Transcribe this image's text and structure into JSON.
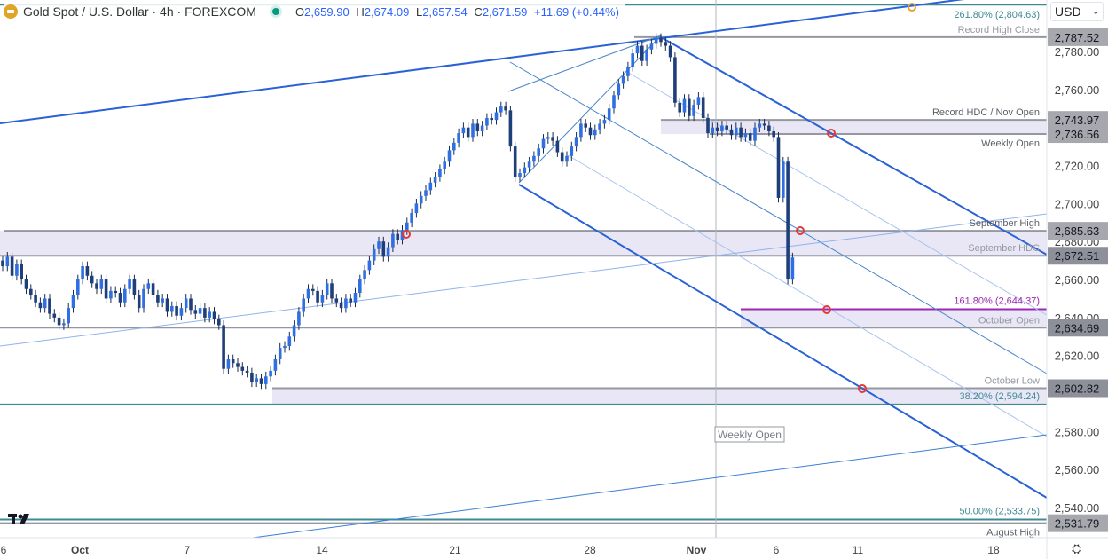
{
  "header": {
    "symbol": "Gold Spot / U.S. Dollar · 4h · FOREXCOM",
    "open_label": "O",
    "open": "2,659.90",
    "high_label": "H",
    "high": "2,674.09",
    "low_label": "L",
    "low": "2,657.54",
    "close_label": "C",
    "close": "2,671.59",
    "change": "+11.69 (+0.44%)"
  },
  "currency": "USD",
  "colors": {
    "up": "#2f6fe4",
    "down": "#1f3f7a",
    "band": "#e9e7f5",
    "level": "#9598a1",
    "fib": "#3f8b95",
    "fib_ext": "#9c27b0",
    "pitchfork": "#2962d6",
    "marker": "#e53935",
    "orange_marker": "#f0a030"
  },
  "chart_data": {
    "type": "candlestick",
    "timeframe": "4h",
    "ylim": [
      2527,
      2810
    ],
    "y_ticks": [
      "2,780.00",
      "2,760.00",
      "2,720.00",
      "2,700.00",
      "2,680.00",
      "2,660.00",
      "2,640.00",
      "2,620.00",
      "2,580.00",
      "2,560.00",
      "2,540.00"
    ],
    "y_tick_values": [
      2780,
      2760,
      2720,
      2700,
      2680,
      2660,
      2640,
      2620,
      2580,
      2560,
      2540
    ],
    "x_ticks": [
      "6",
      "Oct",
      "7",
      "14",
      "21",
      "28",
      "Nov",
      "6",
      "11",
      "18"
    ],
    "closes": [
      2667,
      2672,
      2662,
      2668,
      2660,
      2655,
      2652,
      2648,
      2645,
      2650,
      2642,
      2640,
      2636,
      2637,
      2645,
      2652,
      2660,
      2667,
      2662,
      2658,
      2655,
      2660,
      2650,
      2654,
      2653,
      2648,
      2655,
      2660,
      2652,
      2645,
      2655,
      2658,
      2652,
      2648,
      2650,
      2643,
      2646,
      2641,
      2645,
      2650,
      2644,
      2642,
      2645,
      2640,
      2643,
      2639,
      2636,
      2613,
      2618,
      2616,
      2614,
      2612,
      2611,
      2606,
      2608,
      2605,
      2609,
      2612,
      2618,
      2624,
      2625,
      2630,
      2636,
      2643,
      2650,
      2655,
      2654,
      2648,
      2652,
      2658,
      2650,
      2648,
      2645,
      2650,
      2648,
      2653,
      2660,
      2665,
      2670,
      2676,
      2680,
      2672,
      2677,
      2684,
      2681,
      2686,
      2690,
      2695,
      2700,
      2704,
      2707,
      2711,
      2714,
      2718,
      2722,
      2728,
      2732,
      2737,
      2740,
      2735,
      2742,
      2738,
      2741,
      2745,
      2744,
      2748,
      2751,
      2749,
      2730,
      2714,
      2716,
      2719,
      2722,
      2725,
      2729,
      2734,
      2735,
      2733,
      2727,
      2722,
      2725,
      2730,
      2735,
      2742,
      2740,
      2736,
      2739,
      2742,
      2744,
      2750,
      2757,
      2763,
      2767,
      2772,
      2779,
      2783,
      2775,
      2781,
      2784,
      2787,
      2785,
      2783,
      2777,
      2753,
      2748,
      2755,
      2746,
      2752,
      2756,
      2745,
      2737,
      2740,
      2738,
      2741,
      2739,
      2736,
      2740,
      2735,
      2737,
      2733,
      2740,
      2742,
      2741,
      2738,
      2735,
      2703,
      2722,
      2660
    ],
    "last_bar": {
      "open": 2659.9,
      "high": 2674.09,
      "low": 2657.54,
      "close": 2671.59
    },
    "levels": [
      {
        "price": 2804.63,
        "label": "261.80% (2,804.63)",
        "kind": "fib"
      },
      {
        "price": 2787.52,
        "label": "Record High Close",
        "tag": "2,787.52",
        "kind": "level"
      },
      {
        "price": 2743.97,
        "label": "Record HDC / Nov Open",
        "tag": "2,743.97",
        "kind": "level"
      },
      {
        "price": 2736.56,
        "label": "Weekly Open",
        "tag": "2,736.56",
        "kind": "level"
      },
      {
        "price": 2685.63,
        "label": "September High",
        "tag": "2,685.63",
        "kind": "level"
      },
      {
        "price": 2672.51,
        "label": "September HDC",
        "tag": "2,672.51",
        "kind": "level"
      },
      {
        "price": 2644.37,
        "label": "161.80% (2,644.37)",
        "kind": "fib_ext"
      },
      {
        "price": 2634.69,
        "label": "October Open",
        "tag": "2,634.69",
        "kind": "level"
      },
      {
        "price": 2602.82,
        "label": "October Low",
        "tag": "2,602.82",
        "kind": "level"
      },
      {
        "price": 2594.24,
        "label": "38.20% (2,594.24)",
        "kind": "fib"
      },
      {
        "price": 2533.75,
        "label": "50.00% (2,533.75)",
        "kind": "fib"
      },
      {
        "price": 2531.79,
        "label": "August High",
        "tag": "2,531.79",
        "kind": "level"
      }
    ],
    "vertical_marker_label": "Weekly Open"
  }
}
